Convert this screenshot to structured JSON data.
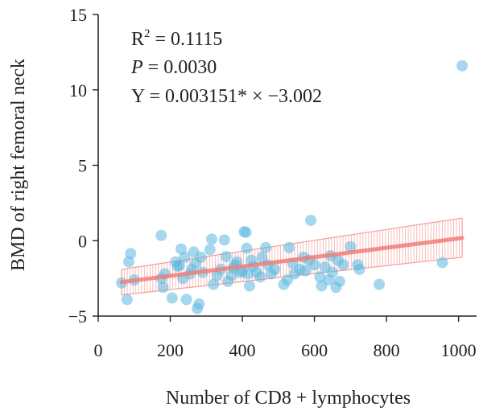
{
  "chart_data": {
    "type": "scatter",
    "title": "",
    "xlabel": "Number of CD8 + lymphocytes",
    "ylabel": "BMD of right femoral neck",
    "xlim": [
      0,
      1050
    ],
    "ylim": [
      -5,
      15
    ],
    "x_ticks": [
      0,
      200,
      400,
      600,
      800,
      1000
    ],
    "y_ticks": [
      -5,
      0,
      5,
      10,
      15
    ],
    "grid": false,
    "colors": {
      "points": "#5bb8e0",
      "fit": "#ef7f7b",
      "ci": "#f28b86"
    },
    "annotations": {
      "r2_label": "R",
      "r2_sup": "2",
      "r2_value": " = 0.1115",
      "p_label": "P",
      "p_value": " = 0.0030",
      "equation": "Y = 0.003151* × −3.002"
    },
    "fit": {
      "x0": 65,
      "y0": -2.75,
      "x1": 1010,
      "y1": 0.18
    },
    "ci": {
      "x0": 65,
      "lo0": -3.6,
      "hi0": -1.9,
      "x1": 1010,
      "lo1": -1.1,
      "hi1": 1.5
    },
    "points": [
      {
        "x": 65,
        "y": -2.8
      },
      {
        "x": 80,
        "y": -3.9
      },
      {
        "x": 85,
        "y": -1.4
      },
      {
        "x": 90,
        "y": -0.85
      },
      {
        "x": 100,
        "y": -2.6
      },
      {
        "x": 175,
        "y": 0.35
      },
      {
        "x": 175,
        "y": -2.5
      },
      {
        "x": 185,
        "y": -2.2
      },
      {
        "x": 180,
        "y": -3.1
      },
      {
        "x": 205,
        "y": -3.8
      },
      {
        "x": 215,
        "y": -1.4
      },
      {
        "x": 220,
        "y": -1.7
      },
      {
        "x": 225,
        "y": -1.65
      },
      {
        "x": 230,
        "y": -0.55
      },
      {
        "x": 235,
        "y": -2.5
      },
      {
        "x": 240,
        "y": -1.1
      },
      {
        "x": 245,
        "y": -3.9
      },
      {
        "x": 255,
        "y": -2.2
      },
      {
        "x": 260,
        "y": -1.9
      },
      {
        "x": 265,
        "y": -0.75
      },
      {
        "x": 270,
        "y": -1.5
      },
      {
        "x": 275,
        "y": -4.5
      },
      {
        "x": 280,
        "y": -4.2
      },
      {
        "x": 285,
        "y": -1.1
      },
      {
        "x": 290,
        "y": -2.1
      },
      {
        "x": 310,
        "y": -0.6
      },
      {
        "x": 315,
        "y": 0.1
      },
      {
        "x": 320,
        "y": -2.9
      },
      {
        "x": 330,
        "y": -2.3
      },
      {
        "x": 340,
        "y": -1.9
      },
      {
        "x": 350,
        "y": 0.05
      },
      {
        "x": 355,
        "y": -1.05
      },
      {
        "x": 360,
        "y": -2.7
      },
      {
        "x": 370,
        "y": -2.3
      },
      {
        "x": 375,
        "y": -1.8
      },
      {
        "x": 380,
        "y": -1.6
      },
      {
        "x": 385,
        "y": -1.4
      },
      {
        "x": 395,
        "y": -2.1
      },
      {
        "x": 400,
        "y": -2.0
      },
      {
        "x": 405,
        "y": 0.6
      },
      {
        "x": 410,
        "y": 0.55
      },
      {
        "x": 412,
        "y": -0.5
      },
      {
        "x": 415,
        "y": -2.2
      },
      {
        "x": 420,
        "y": -3.0
      },
      {
        "x": 425,
        "y": -1.3
      },
      {
        "x": 430,
        "y": -1.7
      },
      {
        "x": 440,
        "y": -2.1
      },
      {
        "x": 450,
        "y": -2.4
      },
      {
        "x": 455,
        "y": -1.1
      },
      {
        "x": 465,
        "y": -0.45
      },
      {
        "x": 470,
        "y": -1.6
      },
      {
        "x": 480,
        "y": -2.2
      },
      {
        "x": 490,
        "y": -1.9
      },
      {
        "x": 515,
        "y": -2.9
      },
      {
        "x": 525,
        "y": -2.6
      },
      {
        "x": 530,
        "y": -0.45
      },
      {
        "x": 540,
        "y": -1.5
      },
      {
        "x": 545,
        "y": -2.2
      },
      {
        "x": 560,
        "y": -1.9
      },
      {
        "x": 570,
        "y": -1.1
      },
      {
        "x": 575,
        "y": -2.0
      },
      {
        "x": 585,
        "y": -1.3
      },
      {
        "x": 590,
        "y": 1.35
      },
      {
        "x": 600,
        "y": -1.6
      },
      {
        "x": 615,
        "y": -2.4
      },
      {
        "x": 620,
        "y": -3.0
      },
      {
        "x": 630,
        "y": -1.75
      },
      {
        "x": 640,
        "y": -2.6
      },
      {
        "x": 645,
        "y": -1.0
      },
      {
        "x": 650,
        "y": -2.1
      },
      {
        "x": 660,
        "y": -3.1
      },
      {
        "x": 665,
        "y": -1.3
      },
      {
        "x": 670,
        "y": -2.7
      },
      {
        "x": 680,
        "y": -1.6
      },
      {
        "x": 700,
        "y": -0.4
      },
      {
        "x": 720,
        "y": -1.6
      },
      {
        "x": 725,
        "y": -1.9
      },
      {
        "x": 780,
        "y": -2.9
      },
      {
        "x": 955,
        "y": -1.45
      },
      {
        "x": 1010,
        "y": 11.6
      }
    ]
  }
}
